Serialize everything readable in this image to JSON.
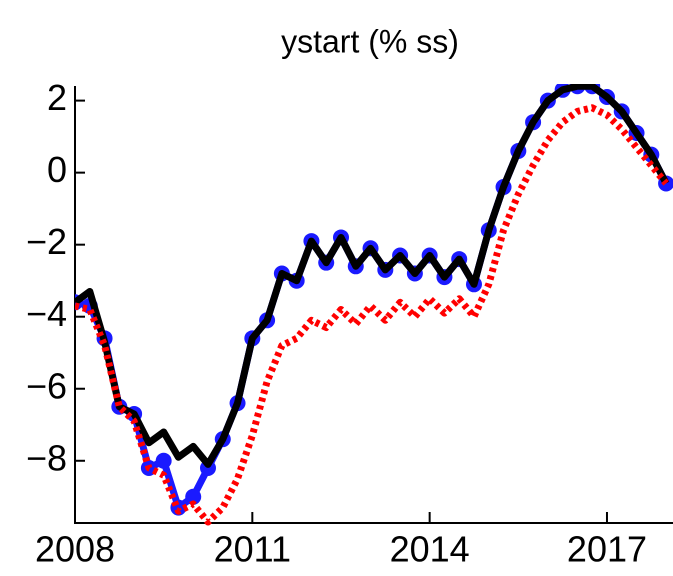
{
  "chart_data": {
    "type": "line",
    "title": "ystart (% ss)",
    "x": [
      2008,
      2008.25,
      2008.5,
      2008.75,
      2009,
      2009.25,
      2009.5,
      2009.75,
      2010,
      2010.25,
      2010.5,
      2010.75,
      2011,
      2011.25,
      2011.5,
      2011.75,
      2012,
      2012.25,
      2012.5,
      2012.75,
      2013,
      2013.25,
      2013.5,
      2013.75,
      2014,
      2014.25,
      2014.5,
      2014.75,
      2015,
      2015.25,
      2015.5,
      2015.75,
      2016,
      2016.25,
      2016.5,
      2016.75,
      2017,
      2017.25,
      2017.5,
      2017.75,
      2018
    ],
    "series": [
      {
        "name": "series-blue",
        "color": "#1a1aff",
        "values": [
          -3.6,
          -3.7,
          -4.6,
          -6.5,
          -6.7,
          -8.2,
          -8.0,
          -9.3,
          -9.0,
          -8.2,
          -7.4,
          -6.4,
          -4.6,
          -4.1,
          -2.8,
          -3.0,
          -1.9,
          -2.5,
          -1.8,
          -2.6,
          -2.1,
          -2.7,
          -2.3,
          -2.8,
          -2.3,
          -2.9,
          -2.4,
          -3.1,
          -1.6,
          -0.4,
          0.6,
          1.4,
          2.0,
          2.3,
          2.4,
          2.4,
          2.1,
          1.7,
          1.1,
          0.5,
          -0.3
        ]
      },
      {
        "name": "series-black",
        "color": "#000000",
        "values": [
          -3.6,
          -3.3,
          -4.7,
          -6.5,
          -6.7,
          -7.5,
          -7.2,
          -7.9,
          -7.6,
          -8.1,
          -7.4,
          -6.4,
          -4.6,
          -4.1,
          -2.8,
          -3.0,
          -1.9,
          -2.5,
          -1.8,
          -2.6,
          -2.1,
          -2.7,
          -2.3,
          -2.8,
          -2.3,
          -2.9,
          -2.4,
          -3.1,
          -1.6,
          -0.4,
          0.6,
          1.4,
          2.0,
          2.3,
          2.4,
          2.4,
          2.1,
          1.7,
          1.1,
          0.5,
          -0.3
        ]
      },
      {
        "name": "series-red",
        "color": "#ff0000",
        "values": [
          -3.7,
          -3.8,
          -4.8,
          -6.5,
          -6.9,
          -8.2,
          -8.4,
          -9.4,
          -9.2,
          -9.7,
          -9.3,
          -8.5,
          -7.3,
          -5.8,
          -4.8,
          -4.6,
          -4.1,
          -4.3,
          -3.8,
          -4.2,
          -3.7,
          -4.1,
          -3.6,
          -4.0,
          -3.5,
          -3.9,
          -3.5,
          -4.0,
          -3.1,
          -1.6,
          -0.6,
          0.2,
          0.9,
          1.4,
          1.7,
          1.8,
          1.6,
          1.2,
          0.7,
          0.2,
          -0.3
        ]
      }
    ],
    "xlim": [
      2008,
      2018.1
    ],
    "xticks": [
      2008,
      2011,
      2014,
      2017
    ],
    "ylim": [
      -9.7,
      2.35
    ],
    "yticks": [
      {
        "value": 2,
        "label": "2"
      },
      {
        "value": 0,
        "label": "0"
      },
      {
        "value": -2,
        "label": "−2"
      },
      {
        "value": -4,
        "label": "−4"
      },
      {
        "value": -6,
        "label": "−6"
      },
      {
        "value": -8,
        "label": "−8"
      }
    ]
  }
}
